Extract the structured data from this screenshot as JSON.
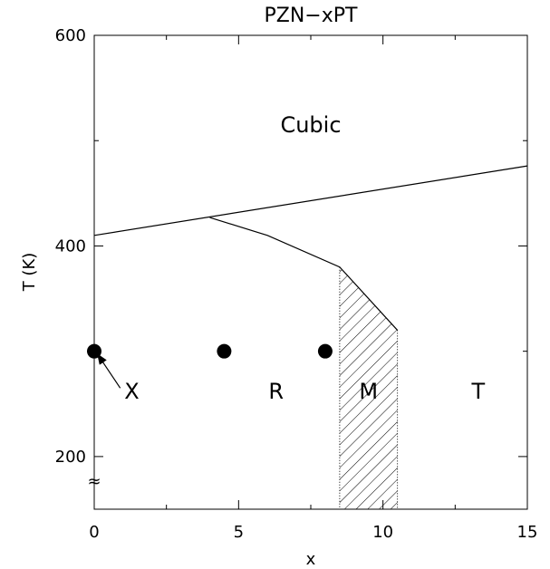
{
  "chart_data": {
    "type": "line",
    "title": "PZN−xPT",
    "xlabel": "x",
    "ylabel": "T (K)",
    "xlim": [
      0,
      15
    ],
    "ylim": [
      150,
      600
    ],
    "x_ticks": [
      0,
      5,
      10,
      15
    ],
    "y_ticks": [
      200,
      400,
      600
    ],
    "x_tick_labels": [
      "0",
      "5",
      "10",
      "15"
    ],
    "y_tick_labels": [
      "200",
      "400",
      "600"
    ],
    "axis_break_symbol": "≈",
    "grid": false,
    "series": [
      {
        "points": [
          [
            0,
            410
          ],
          [
            15,
            476
          ]
        ]
      },
      {
        "points": [
          [
            4,
            427
          ],
          [
            6,
            410
          ],
          [
            8.5,
            380
          ],
          [
            10.5,
            320
          ]
        ]
      }
    ],
    "hatched_region": {
      "polygon": [
        [
          8.5,
          380
        ],
        [
          10.5,
          320
        ],
        [
          10.5,
          150
        ],
        [
          8.5,
          150
        ]
      ]
    },
    "points": [
      {
        "x": 0,
        "y": 300
      },
      {
        "x": 4.5,
        "y": 300
      },
      {
        "x": 8,
        "y": 300
      }
    ],
    "annotations": [
      {
        "text": "Cubic",
        "x": 7.5,
        "y": 508
      },
      {
        "text": "X",
        "x": 1.3,
        "y": 255
      },
      {
        "text": "R",
        "x": 6.3,
        "y": 255
      },
      {
        "text": "M",
        "x": 9.5,
        "y": 255
      },
      {
        "text": "T",
        "x": 13.3,
        "y": 255
      }
    ],
    "arrow": {
      "from": [
        0.9,
        265
      ],
      "to": [
        0.12,
        297
      ]
    }
  }
}
